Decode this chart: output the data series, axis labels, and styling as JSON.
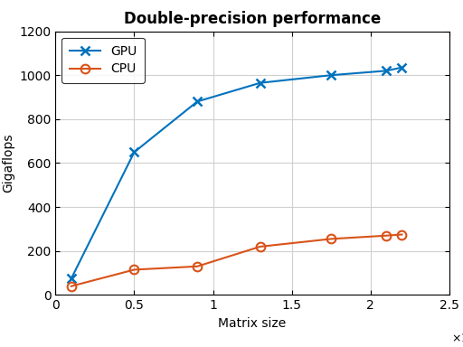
{
  "gpu_x": [
    1000,
    5000,
    9000,
    13000,
    17500,
    21000,
    22000
  ],
  "gpu_y": [
    75,
    650,
    880,
    965,
    1000,
    1020,
    1035
  ],
  "cpu_x": [
    1000,
    5000,
    9000,
    13000,
    17500,
    21000,
    22000
  ],
  "cpu_y": [
    40,
    115,
    130,
    220,
    255,
    270,
    275
  ],
  "gpu_color": "#0072BD",
  "cpu_color": "#D95319",
  "title": "Double-precision performance",
  "xlabel": "Matrix size",
  "ylabel": "Gigaflops",
  "xlim": [
    0,
    25000
  ],
  "ylim": [
    0,
    1200
  ],
  "xticks": [
    0,
    5000,
    10000,
    15000,
    20000,
    25000
  ],
  "yticks": [
    0,
    200,
    400,
    600,
    800,
    1000,
    1200
  ],
  "gpu_label": "GPU",
  "cpu_label": "CPU",
  "grid_color": "#d0d0d0",
  "title_fontsize": 12,
  "label_fontsize": 10,
  "tick_fontsize": 10
}
